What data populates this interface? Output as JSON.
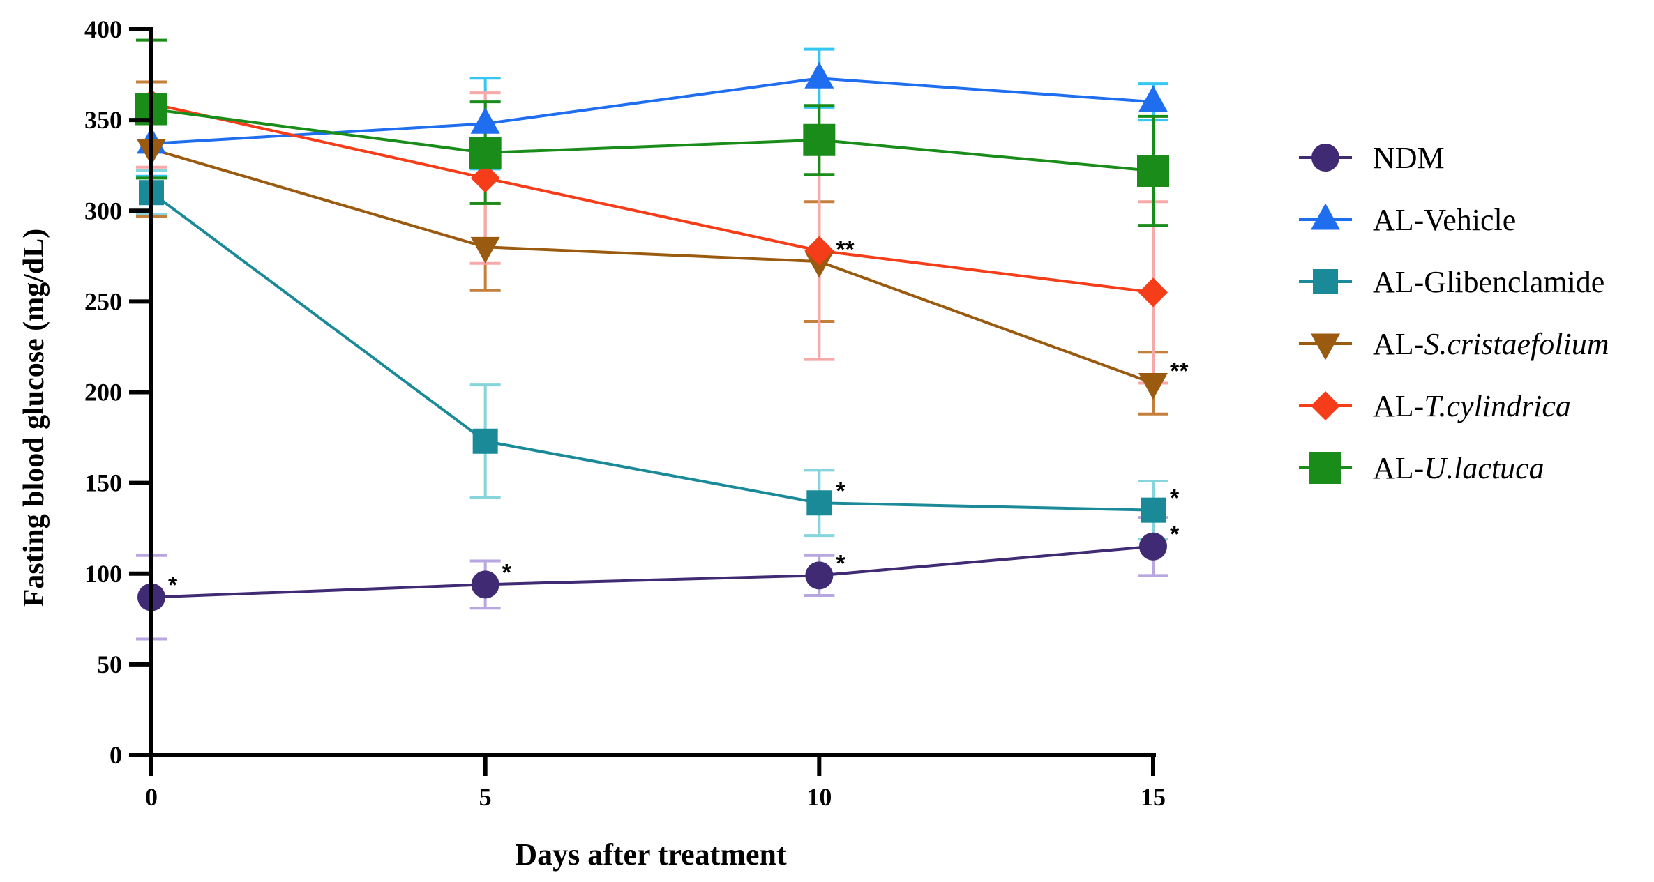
{
  "chart_data": {
    "type": "line",
    "xlabel": "Days after treatment",
    "ylabel": "Fasting blood glucose (mg/dL)",
    "x": [
      0,
      5,
      10,
      15
    ],
    "xticks": [
      "0",
      "5",
      "10",
      "15"
    ],
    "xlim": [
      0,
      15
    ],
    "yticks": [
      "0",
      "50",
      "100",
      "150",
      "200",
      "250",
      "300",
      "350",
      "400"
    ],
    "ylim": [
      0,
      400
    ],
    "grid": false,
    "legend_position": "right",
    "series": [
      {
        "name": "NDM",
        "name_prefix": "NDM",
        "name_italic": "",
        "marker": "circle",
        "color": "#3f2a73",
        "error_color": "#b8a6e0",
        "values": [
          87,
          94,
          99,
          115
        ],
        "errors": [
          23,
          13,
          11,
          16
        ],
        "significance": [
          "*",
          "*",
          "*",
          "*"
        ]
      },
      {
        "name": "AL-Vehicle",
        "name_prefix": "AL-Vehicle",
        "name_italic": "",
        "marker": "triangle-up",
        "color": "#1f6ef0",
        "error_color": "#35c6f2",
        "values": [
          337,
          348,
          373,
          360
        ],
        "errors": [
          18,
          25,
          16,
          10
        ],
        "significance": [
          "",
          "",
          "",
          ""
        ]
      },
      {
        "name": "AL-Glibenclamide",
        "name_prefix": "AL-Glibenclamide",
        "name_italic": "",
        "marker": "square",
        "color": "#1a8a98",
        "error_color": "#86d4dc",
        "values": [
          310,
          173,
          139,
          135
        ],
        "errors": [
          12,
          31,
          18,
          16
        ],
        "significance": [
          "",
          "",
          "*",
          "*"
        ]
      },
      {
        "name": "AL-S.cristaefolium",
        "name_prefix": "AL-",
        "name_italic": "S.cristaefolium",
        "marker": "triangle-down",
        "color": "#9a5a10",
        "error_color": "#c47f3a",
        "values": [
          334,
          280,
          272,
          205
        ],
        "errors": [
          37,
          24,
          33,
          17
        ],
        "significance": [
          "",
          "",
          "**",
          "**"
        ]
      },
      {
        "name": "AL-T.cylindrica",
        "name_prefix": "AL-",
        "name_italic": "T.cylindrica",
        "marker": "diamond",
        "color": "#f53d1a",
        "error_color": "#f7a8a8",
        "values": [
          359,
          318,
          278,
          255
        ],
        "errors": [
          35,
          47,
          60,
          50
        ],
        "significance": [
          "",
          "",
          "",
          ""
        ]
      },
      {
        "name": "AL-U.lactuca",
        "name_prefix": "AL-",
        "name_italic": "U.lactuca",
        "marker": "big-square",
        "color": "#1a8c1a",
        "error_color": "#1a8c1a",
        "values": [
          356,
          332,
          339,
          322
        ],
        "errors": [
          38,
          28,
          19,
          30
        ],
        "significance": [
          "",
          "",
          "",
          ""
        ]
      }
    ]
  }
}
